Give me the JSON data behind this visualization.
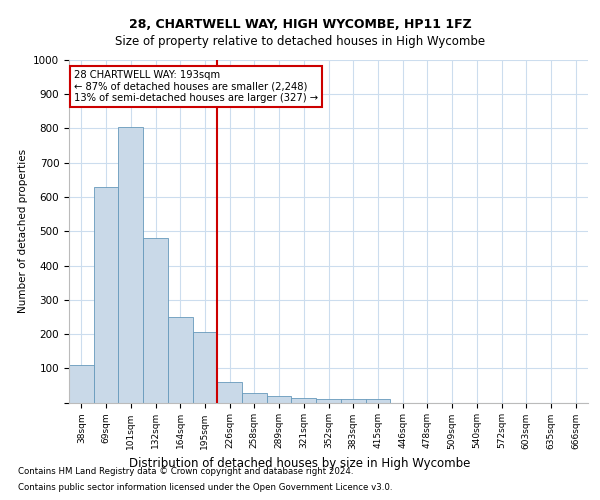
{
  "title1": "28, CHARTWELL WAY, HIGH WYCOMBE, HP11 1FZ",
  "title2": "Size of property relative to detached houses in High Wycombe",
  "xlabel": "Distribution of detached houses by size in High Wycombe",
  "ylabel": "Number of detached properties",
  "categories": [
    "38sqm",
    "69sqm",
    "101sqm",
    "132sqm",
    "164sqm",
    "195sqm",
    "226sqm",
    "258sqm",
    "289sqm",
    "321sqm",
    "352sqm",
    "383sqm",
    "415sqm",
    "446sqm",
    "478sqm",
    "509sqm",
    "540sqm",
    "572sqm",
    "603sqm",
    "635sqm",
    "666sqm"
  ],
  "values": [
    110,
    630,
    805,
    480,
    250,
    207,
    60,
    27,
    18,
    12,
    10,
    10,
    10,
    0,
    0,
    0,
    0,
    0,
    0,
    0,
    0
  ],
  "bar_color": "#c9d9e8",
  "bar_edge_color": "#6699bb",
  "highlight_index": 5,
  "highlight_line_color": "#cc0000",
  "annotation_line1": "28 CHARTWELL WAY: 193sqm",
  "annotation_line2": "← 87% of detached houses are smaller (2,248)",
  "annotation_line3": "13% of semi-detached houses are larger (327) →",
  "annotation_box_color": "#ffffff",
  "annotation_box_edge_color": "#cc0000",
  "ylim": [
    0,
    1000
  ],
  "yticks": [
    0,
    100,
    200,
    300,
    400,
    500,
    600,
    700,
    800,
    900,
    1000
  ],
  "background_color": "#ffffff",
  "grid_color": "#ccddee",
  "footnote1": "Contains HM Land Registry data © Crown copyright and database right 2024.",
  "footnote2": "Contains public sector information licensed under the Open Government Licence v3.0."
}
